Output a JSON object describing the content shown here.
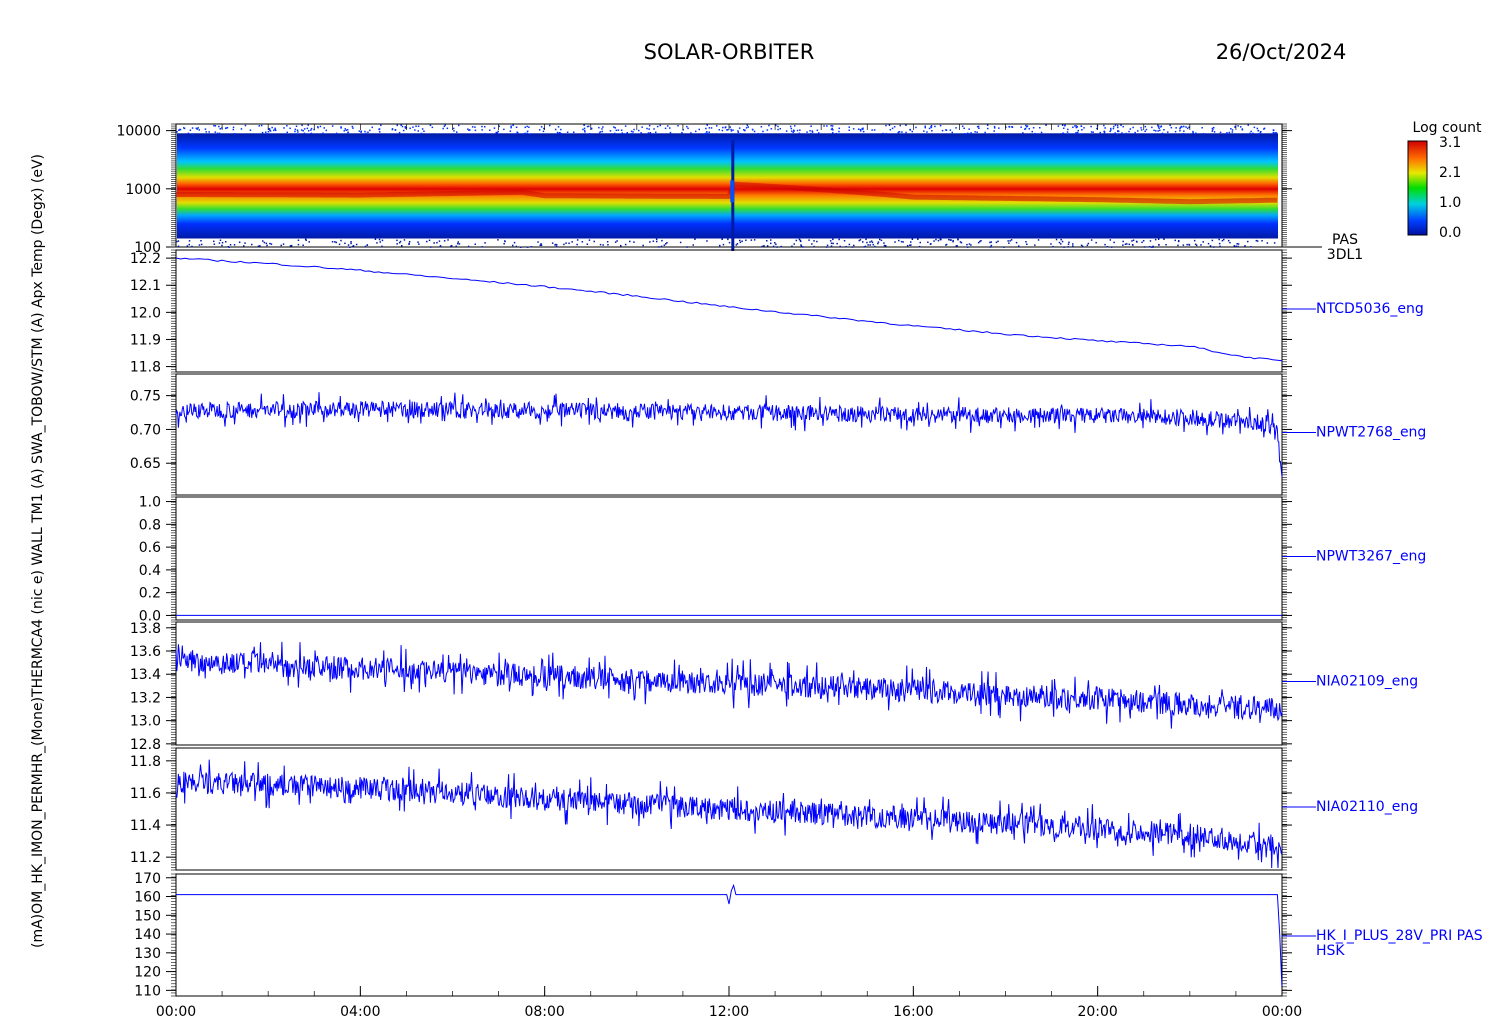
{
  "header": {
    "mission": "SOLAR-ORBITER",
    "date": "26/Oct/2024"
  },
  "left_axis_text": "(mA)OM_HK_IMON_PERMHR_(Mone)THERMCA4 (nic e) WALL TM1 (A) SWA_TOBOW/STM (A) Apx Temp (Degx) (eV)",
  "colorbar": {
    "title": "Log count",
    "ticks": [
      "3.1",
      "2.1",
      "1.0",
      "0.0"
    ]
  },
  "x_axis": {
    "ticks": [
      "00:00",
      "04:00",
      "08:00",
      "12:00",
      "16:00",
      "20:00",
      "00:00"
    ]
  },
  "colors": {
    "trace": "#0000ff",
    "spectrogram_bg": "#001aa6"
  },
  "chart_data": [
    {
      "type": "heatmap",
      "panel_label": [
        "PAS",
        "3DL1"
      ],
      "ylabel": "(eV)",
      "yscale": "log",
      "ylim": [
        100,
        13000
      ],
      "yticks": [
        "10000",
        "1000",
        "100"
      ],
      "xlim_hours": [
        0,
        24
      ],
      "peak_energy_ev": [
        [
          0,
          800
        ],
        [
          4,
          780
        ],
        [
          7.5,
          870
        ],
        [
          8,
          760
        ],
        [
          12,
          740
        ],
        [
          12.1,
          1200
        ],
        [
          16,
          720
        ],
        [
          20,
          650
        ],
        [
          22,
          600
        ],
        [
          24,
          640
        ]
      ],
      "colorbar_range": [
        0.0,
        3.1
      ]
    },
    {
      "type": "line",
      "panel_label": "NTCD5036_eng",
      "ylabel": "Apx Temp (Degx)",
      "ylim": [
        11.78,
        12.23
      ],
      "yticks": [
        "12.2",
        "12.1",
        "12.0",
        "11.9",
        "11.8"
      ],
      "x": [
        0,
        2,
        4,
        6,
        8,
        10,
        12,
        14,
        16,
        18,
        20,
        22,
        23,
        24
      ],
      "y": [
        12.2,
        12.18,
        12.155,
        12.125,
        12.095,
        12.06,
        12.02,
        11.985,
        11.95,
        11.92,
        11.895,
        11.875,
        11.84,
        11.82
      ]
    },
    {
      "type": "line",
      "panel_label": "NPWT2768_eng",
      "ylabel": "SWA_TOBOW/STM (A)",
      "ylim": [
        0.603,
        0.782
      ],
      "yticks": [
        "0.75",
        "0.70",
        "0.65"
      ],
      "x": [
        0,
        4,
        8,
        12,
        16,
        20,
        22,
        23.5,
        23.9,
        24
      ],
      "y": [
        0.728,
        0.73,
        0.728,
        0.725,
        0.722,
        0.72,
        0.718,
        0.71,
        0.7,
        0.625
      ],
      "noise": 0.012
    },
    {
      "type": "line",
      "panel_label": "NPWT3267_eng",
      "ylabel": "WALL TM1 (A)",
      "ylim": [
        -0.04,
        1.04
      ],
      "yticks": [
        "1.0",
        "0.8",
        "0.6",
        "0.4",
        "0.2",
        "0.0"
      ],
      "x": [
        0,
        24
      ],
      "y": [
        0.0,
        0.0
      ]
    },
    {
      "type": "line",
      "panel_label": "NIA02109_eng",
      "ylabel": "THERMCA4 (nic e)",
      "ylim": [
        12.79,
        13.85
      ],
      "yticks": [
        "13.8",
        "13.6",
        "13.4",
        "13.2",
        "13.0",
        "12.8"
      ],
      "x": [
        0,
        2,
        4,
        6,
        8,
        10,
        12,
        14,
        16,
        18,
        20,
        22,
        24
      ],
      "y": [
        13.52,
        13.48,
        13.45,
        13.42,
        13.38,
        13.35,
        13.32,
        13.29,
        13.26,
        13.22,
        13.19,
        13.14,
        13.09
      ],
      "noise": 0.1
    },
    {
      "type": "line",
      "panel_label": "NIA02110_eng",
      "ylabel": "PERMHR_(Mone)",
      "ylim": [
        11.12,
        11.88
      ],
      "yticks": [
        "11.8",
        "11.6",
        "11.4",
        "11.2"
      ],
      "x": [
        0,
        2,
        4,
        6,
        8,
        10,
        12,
        14,
        16,
        18,
        20,
        22,
        24
      ],
      "y": [
        11.67,
        11.65,
        11.63,
        11.6,
        11.56,
        11.53,
        11.5,
        11.47,
        11.44,
        11.41,
        11.38,
        11.34,
        11.27
      ],
      "noise": 0.07
    },
    {
      "type": "line",
      "panel_label": [
        "HK_I_PLUS_28V_PRI PAS",
        "HSK"
      ],
      "ylabel": "(mA)OM_HK_IMON",
      "ylim": [
        107,
        172
      ],
      "yticks": [
        "170",
        "160",
        "150",
        "140",
        "130",
        "120",
        "110"
      ],
      "x": [
        0,
        11.95,
        12.0,
        12.05,
        12.1,
        12.15,
        23.9,
        23.95,
        24
      ],
      "y": [
        161,
        161,
        156,
        163,
        166,
        161,
        161,
        140,
        111
      ]
    }
  ]
}
